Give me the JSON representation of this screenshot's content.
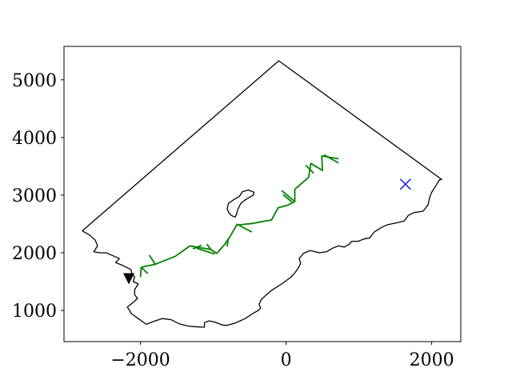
{
  "chart_data": {
    "type": "line",
    "title": "",
    "xlabel": "",
    "ylabel": "",
    "xlim": [
      -3050,
      2400
    ],
    "ylim": [
      460,
      5580
    ],
    "xticks": [
      -2000,
      0,
      2000
    ],
    "yticks": [
      1000,
      2000,
      3000,
      4000,
      5000
    ],
    "xtick_labels": [
      "−2000",
      "0",
      "2000"
    ],
    "ytick_labels": [
      "1000",
      "2000",
      "3000",
      "4000",
      "5000"
    ],
    "grid": false,
    "legend": "none",
    "colors": {
      "boundary": "#000000",
      "path": "#008000",
      "target": "#0000ff",
      "start": "#000000"
    },
    "boundary": [
      [
        -2800,
        2380
      ],
      [
        -2700,
        2310
      ],
      [
        -2620,
        2220
      ],
      [
        -2590,
        2120
      ],
      [
        -2640,
        2020
      ],
      [
        -2560,
        2000
      ],
      [
        -2470,
        2000
      ],
      [
        -2360,
        1940
      ],
      [
        -2290,
        1900
      ],
      [
        -2340,
        1830
      ],
      [
        -2260,
        1790
      ],
      [
        -2130,
        1710
      ],
      [
        -2120,
        1650
      ],
      [
        -2080,
        1580
      ],
      [
        -2100,
        1500
      ],
      [
        -2030,
        1460
      ],
      [
        -2080,
        1360
      ],
      [
        -2080,
        1270
      ],
      [
        -2040,
        1210
      ],
      [
        -2100,
        1140
      ],
      [
        -2180,
        1060
      ],
      [
        -2120,
        940
      ],
      [
        -2030,
        860
      ],
      [
        -1920,
        760
      ],
      [
        -1820,
        810
      ],
      [
        -1700,
        860
      ],
      [
        -1580,
        840
      ],
      [
        -1470,
        770
      ],
      [
        -1350,
        730
      ],
      [
        -1260,
        720
      ],
      [
        -1120,
        710
      ],
      [
        -1120,
        790
      ],
      [
        -1060,
        820
      ],
      [
        -980,
        800
      ],
      [
        -880,
        750
      ],
      [
        -820,
        740
      ],
      [
        -700,
        780
      ],
      [
        -560,
        860
      ],
      [
        -440,
        960
      ],
      [
        -380,
        1000
      ],
      [
        -350,
        1040
      ],
      [
        -370,
        1110
      ],
      [
        -340,
        1190
      ],
      [
        -280,
        1260
      ],
      [
        -200,
        1350
      ],
      [
        -60,
        1460
      ],
      [
        60,
        1570
      ],
      [
        120,
        1650
      ],
      [
        170,
        1740
      ],
      [
        200,
        1820
      ],
      [
        180,
        1900
      ],
      [
        240,
        1990
      ],
      [
        330,
        2040
      ],
      [
        460,
        2000
      ],
      [
        560,
        2020
      ],
      [
        640,
        2080
      ],
      [
        720,
        2120
      ],
      [
        800,
        2100
      ],
      [
        870,
        2150
      ],
      [
        900,
        2200
      ],
      [
        990,
        2200
      ],
      [
        1070,
        2240
      ],
      [
        1150,
        2260
      ],
      [
        1210,
        2360
      ],
      [
        1310,
        2440
      ],
      [
        1400,
        2490
      ],
      [
        1520,
        2520
      ],
      [
        1620,
        2550
      ],
      [
        1680,
        2650
      ],
      [
        1760,
        2700
      ],
      [
        1880,
        2720
      ],
      [
        1950,
        2830
      ],
      [
        1970,
        2950
      ],
      [
        2000,
        3050
      ],
      [
        2060,
        3170
      ],
      [
        2110,
        3270
      ],
      [
        2140,
        3270
      ],
      [
        -100,
        5330
      ],
      [
        -2800,
        2380
      ]
    ],
    "island": [
      [
        -780,
        2680
      ],
      [
        -740,
        2640
      ],
      [
        -700,
        2620
      ],
      [
        -680,
        2670
      ],
      [
        -660,
        2760
      ],
      [
        -620,
        2860
      ],
      [
        -560,
        2920
      ],
      [
        -450,
        3000
      ],
      [
        -440,
        3050
      ],
      [
        -520,
        3090
      ],
      [
        -600,
        3060
      ],
      [
        -640,
        2980
      ],
      [
        -720,
        2920
      ],
      [
        -790,
        2860
      ],
      [
        -810,
        2760
      ],
      [
        -780,
        2680
      ]
    ],
    "path": [
      [
        -1990,
        1750
      ],
      [
        -1800,
        1800
      ],
      [
        -1520,
        1940
      ],
      [
        -1320,
        2120
      ],
      [
        -1040,
        2060
      ],
      [
        -950,
        1990
      ],
      [
        -840,
        2150
      ],
      [
        -780,
        2260
      ],
      [
        -680,
        2480
      ],
      [
        -460,
        2510
      ],
      [
        -200,
        2570
      ],
      [
        -110,
        2780
      ],
      [
        30,
        2830
      ],
      [
        120,
        2890
      ],
      [
        120,
        3100
      ],
      [
        310,
        3310
      ],
      [
        340,
        3550
      ],
      [
        500,
        3430
      ],
      [
        490,
        3680
      ],
      [
        720,
        3630
      ]
    ],
    "branches": [
      [
        [
          -1990,
          1750
        ],
        [
          -2000,
          1580
        ]
      ],
      [
        [
          -1990,
          1750
        ],
        [
          -1900,
          1640
        ]
      ],
      [
        [
          -1790,
          1790
        ],
        [
          -1880,
          1960
        ]
      ],
      [
        [
          -1280,
          2070
        ],
        [
          -1160,
          2130
        ]
      ],
      [
        [
          -1230,
          2080
        ],
        [
          -980,
          1980
        ]
      ],
      [
        [
          -1090,
          2150
        ],
        [
          -1020,
          2040
        ]
      ],
      [
        [
          -810,
          2110
        ],
        [
          -790,
          2260
        ]
      ],
      [
        [
          -680,
          2500
        ],
        [
          -470,
          2360
        ]
      ],
      [
        [
          120,
          2890
        ],
        [
          -60,
          3080
        ]
      ],
      [
        [
          80,
          2880
        ],
        [
          -40,
          3010
        ]
      ],
      [
        [
          270,
          3520
        ],
        [
          380,
          3380
        ]
      ],
      [
        [
          520,
          3700
        ],
        [
          720,
          3560
        ]
      ]
    ],
    "target": {
      "x": 1640,
      "y": 3190,
      "marker": "x"
    },
    "start": {
      "x": -2160,
      "y": 1550,
      "marker": "triangle-down"
    }
  }
}
